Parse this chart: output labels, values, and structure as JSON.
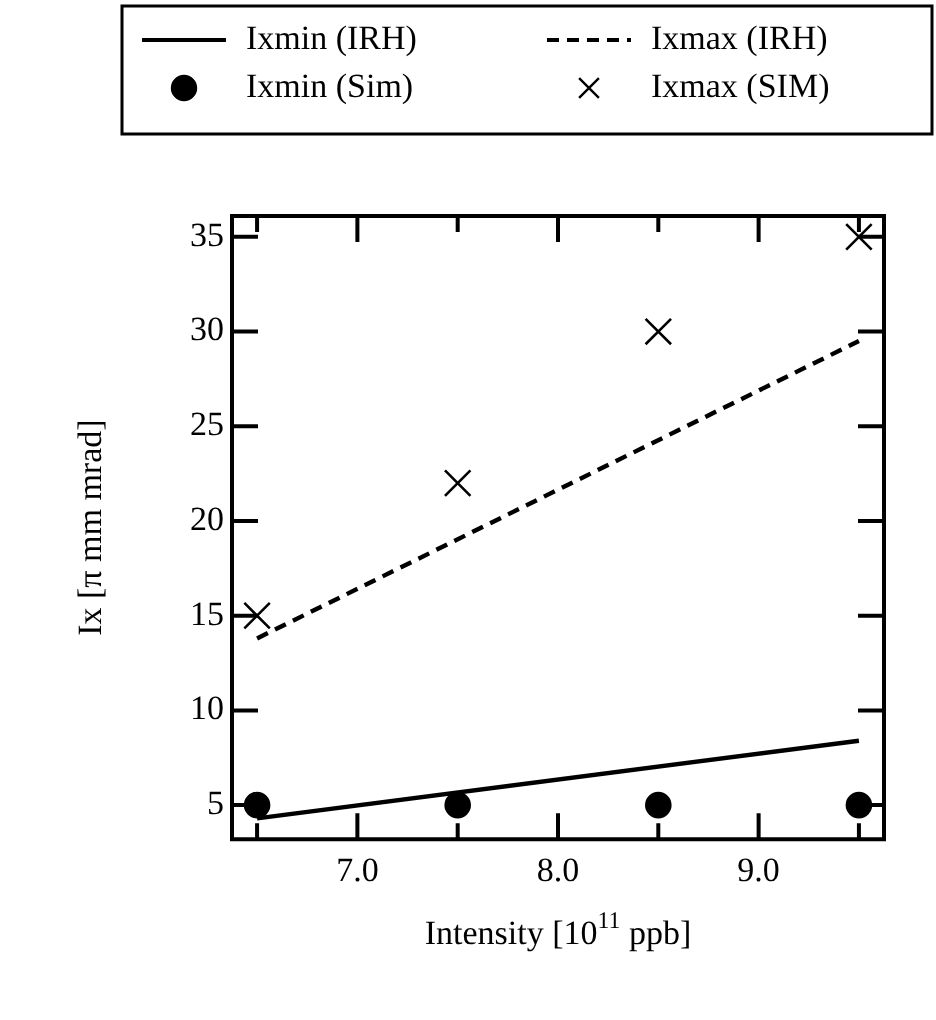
{
  "chart_data": {
    "type": "scatter",
    "xlabel": "Intensity [10$^{11}$ ppb]",
    "ylabel": "Ix [π mm mrad]",
    "xlim": [
      6.375,
      9.625
    ],
    "ylim": [
      3.2,
      36.1
    ],
    "xticks": [
      {
        "value": 6.5,
        "label": null
      },
      {
        "value": 7,
        "label": "7.0"
      },
      {
        "value": 7.5,
        "label": null
      },
      {
        "value": 8,
        "label": "8.0"
      },
      {
        "value": 8.5,
        "label": null
      },
      {
        "value": 9,
        "label": "9.0"
      },
      {
        "value": 9.5,
        "label": null
      }
    ],
    "yticks": [
      5,
      10,
      15,
      20,
      25,
      30,
      35
    ],
    "grid": false,
    "legend": "top",
    "series": [
      {
        "name": "Ixmin (IRH)",
        "type": "line",
        "line_style": "solid",
        "marker": "none",
        "color": "#000000",
        "x": [
          6.5,
          9.5
        ],
        "values": [
          4.3,
          8.4
        ]
      },
      {
        "name": "Ixmax (IRH)",
        "type": "line",
        "line_style": "dashed",
        "marker": "none",
        "color": "#000000",
        "x": [
          6.5,
          9.5
        ],
        "values": [
          13.8,
          29.5
        ]
      },
      {
        "name": "Ixmin (Sim)",
        "type": "scatter",
        "marker": "circle",
        "color": "#000000",
        "x": [
          6.5,
          7.5,
          8.5,
          9.5
        ],
        "values": [
          5,
          5,
          5,
          5
        ]
      },
      {
        "name": "Ixmax (SIM)",
        "type": "scatter",
        "marker": "cross",
        "color": "#000000",
        "x": [
          6.5,
          7.5,
          8.5,
          9.5
        ],
        "values": [
          15,
          22,
          30,
          35
        ]
      }
    ]
  }
}
